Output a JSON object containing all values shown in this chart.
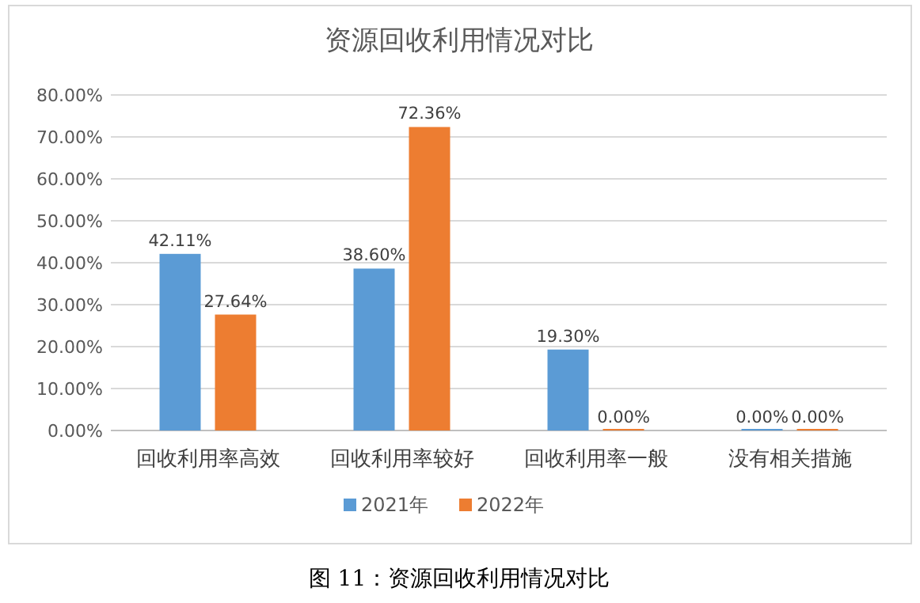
{
  "chart_data": {
    "type": "bar",
    "title": "资源回收利用情况对比",
    "categories": [
      "回收利用率高效",
      "回收利用率较好",
      "回收利用率一般",
      "没有相关措施"
    ],
    "series": [
      {
        "name": "2021年",
        "color": "#5b9bd5",
        "values": [
          42.11,
          38.6,
          19.3,
          0
        ],
        "value_labels": [
          "42.11%",
          "38.60%",
          "19.30%",
          "0.00%"
        ]
      },
      {
        "name": "2022年",
        "color": "#ed7d31",
        "values": [
          27.64,
          72.36,
          0,
          0
        ],
        "value_labels": [
          "27.64%",
          "72.36%",
          "0.00%",
          "0.00%"
        ]
      }
    ],
    "ylim": [
      0,
      80
    ],
    "yticks": [
      {
        "value": 0,
        "label": "0.00%"
      },
      {
        "value": 10,
        "label": "10.00%"
      },
      {
        "value": 20,
        "label": "20.00%"
      },
      {
        "value": 30,
        "label": "30.00%"
      },
      {
        "value": 40,
        "label": "40.00%"
      },
      {
        "value": 50,
        "label": "50.00%"
      },
      {
        "value": 60,
        "label": "60.00%"
      },
      {
        "value": 70,
        "label": "70.00%"
      },
      {
        "value": 80,
        "label": "80.00%"
      }
    ],
    "grid": "y",
    "legend": "bottom",
    "annotations": [
      "图 11：资源回收利用情况对比"
    ]
  }
}
